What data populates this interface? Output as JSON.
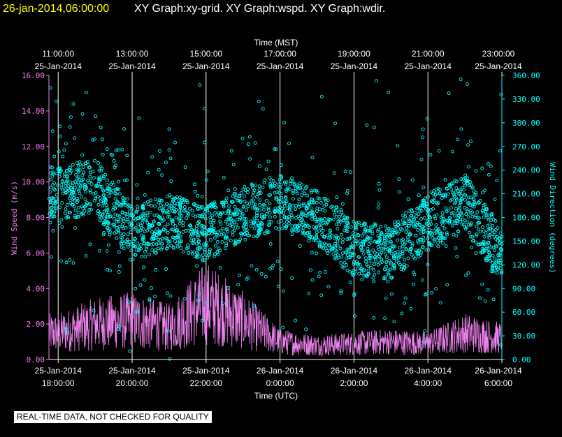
{
  "header": {
    "datetime": "26-jan-2014,06:00:00",
    "graphs": "XY Graph:xy-grid.  XY Graph:wspd.  XY Graph:wdir."
  },
  "footer": {
    "quality_note": "REAL-TIME DATA, NOT CHECKED FOR QUALITY"
  },
  "colors": {
    "datetime": "#ffff00",
    "title": "#ffffff",
    "speed": "#ee82ee",
    "direction": "#00ffff",
    "grid": "#ffffff",
    "background": "#000000"
  },
  "chart_data": {
    "type": "scatter",
    "x_top": {
      "label": "Time (MST)",
      "ticks": [
        {
          "time": "11:00:00",
          "date": "25-Jan-2014"
        },
        {
          "time": "13:00:00",
          "date": "25-Jan-2014"
        },
        {
          "time": "15:00:00",
          "date": "25-Jan-2014"
        },
        {
          "time": "17:00:00",
          "date": "25-Jan-2014"
        },
        {
          "time": "19:00:00",
          "date": "25-Jan-2014"
        },
        {
          "time": "21:00:00",
          "date": "25-Jan-2014"
        },
        {
          "time": "23:00:00",
          "date": "25-Jan-2014"
        }
      ]
    },
    "x_bottom": {
      "label": "Time (UTC)",
      "range": [
        "2014-01-25T17:45:00Z",
        "2014-01-26T06:00:00Z"
      ],
      "ticks": [
        {
          "date": "25-Jan-2014",
          "time": "18:00:00"
        },
        {
          "date": "25-Jan-2014",
          "time": "20:00:00"
        },
        {
          "date": "25-Jan-2014",
          "time": "22:00:00"
        },
        {
          "date": "26-Jan-2014",
          "time": "0:00:00"
        },
        {
          "date": "26-Jan-2014",
          "time": "2:00:00"
        },
        {
          "date": "26-Jan-2014",
          "time": "4:00:00"
        },
        {
          "date": "26-Jan-2014",
          "time": "6:00:00"
        }
      ]
    },
    "y_left": {
      "label": "Wind Speed (m/s)",
      "ylim": [
        0,
        16
      ],
      "ticks": [
        "0.00",
        "2.00",
        "4.00",
        "6.00",
        "8.00",
        "10.00",
        "12.00",
        "14.00",
        "16.00"
      ]
    },
    "y_right": {
      "label": "Wind Direction (degrees)",
      "ylim": [
        0,
        360
      ],
      "ticks": [
        "0.00",
        "30.00",
        "60.00",
        "90.00",
        "120.00",
        "150.00",
        "180.00",
        "210.00",
        "240.00",
        "270.00",
        "300.00",
        "330.00",
        "360.00"
      ]
    },
    "grid": true,
    "series": [
      {
        "name": "Wind Speed",
        "style": "line",
        "axis": "left",
        "x": [
          "2014-01-25T18:00:00Z",
          "2014-01-25T19:00:00Z",
          "2014-01-25T20:00:00Z",
          "2014-01-25T21:00:00Z",
          "2014-01-25T22:00:00Z",
          "2014-01-25T23:00:00Z",
          "2014-01-26T00:00:00Z",
          "2014-01-26T01:00:00Z",
          "2014-01-26T02:00:00Z",
          "2014-01-26T03:00:00Z",
          "2014-01-26T04:00:00Z",
          "2014-01-26T05:00:00Z",
          "2014-01-26T06:00:00Z"
        ],
        "y": [
          1.5,
          2.0,
          2.2,
          1.8,
          3.2,
          2.2,
          1.0,
          0.8,
          0.9,
          1.0,
          0.9,
          1.5,
          1.2
        ]
      },
      {
        "name": "Wind Direction",
        "style": "points",
        "axis": "right",
        "x": [
          "2014-01-25T18:00:00Z",
          "2014-01-25T19:00:00Z",
          "2014-01-25T20:00:00Z",
          "2014-01-25T21:00:00Z",
          "2014-01-25T22:00:00Z",
          "2014-01-25T23:00:00Z",
          "2014-01-26T00:00:00Z",
          "2014-01-26T01:00:00Z",
          "2014-01-26T02:00:00Z",
          "2014-01-26T03:00:00Z",
          "2014-01-26T04:00:00Z",
          "2014-01-26T05:00:00Z",
          "2014-01-26T06:00:00Z"
        ],
        "y": [
          210,
          220,
          160,
          175,
          160,
          185,
          200,
          180,
          140,
          135,
          175,
          200,
          130
        ]
      }
    ]
  }
}
